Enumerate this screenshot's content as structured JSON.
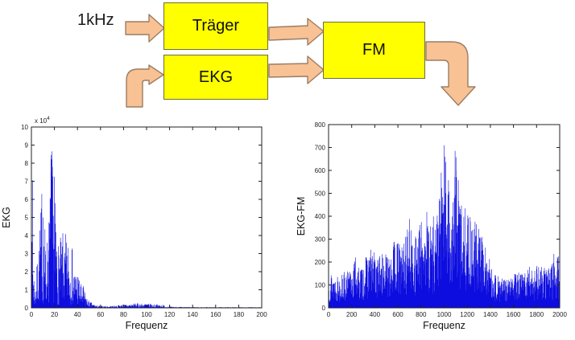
{
  "diagram": {
    "input_label": "1kHz",
    "blocks": {
      "traeger": "Träger",
      "ekg": "EKG",
      "fm": "FM"
    },
    "colors": {
      "block_fill": "#ffff00",
      "block_border": "#6e6e3a",
      "arrow_fill": "#f8c295",
      "arrow_border": "#9b7d63"
    }
  },
  "chart_data": [
    {
      "type": "line",
      "subtype": "noisy-spectrum",
      "title": "",
      "xlabel": "Frequenz",
      "ylabel": "EKG",
      "xlim": [
        0,
        200
      ],
      "xtick_step": 20,
      "ylim": [
        0,
        10
      ],
      "ytick_step": 1,
      "y_exponent_label": "x 10",
      "y_exponent_power": "4",
      "grid": false,
      "box": true,
      "line_color": "#0d0de0",
      "envelope": [
        [
          0,
          0.4
        ],
        [
          1,
          7.1
        ],
        [
          1.5,
          3.0
        ],
        [
          2,
          2.4
        ],
        [
          3,
          1.2
        ],
        [
          4,
          1.6
        ],
        [
          5,
          2.6
        ],
        [
          6,
          3.4
        ],
        [
          7,
          4.6
        ],
        [
          8,
          5.2
        ],
        [
          9,
          6.3
        ],
        [
          10,
          5.1
        ],
        [
          11,
          4.4
        ],
        [
          12,
          4.7
        ],
        [
          13,
          3.9
        ],
        [
          14,
          4.1
        ],
        [
          15,
          4.9
        ],
        [
          16,
          6.1
        ],
        [
          17,
          8.5
        ],
        [
          18,
          8.7
        ],
        [
          19,
          6.4
        ],
        [
          20,
          7.3
        ],
        [
          21,
          5.5
        ],
        [
          22,
          4.4
        ],
        [
          23,
          3.8
        ],
        [
          24,
          3.5
        ],
        [
          25,
          4.0
        ],
        [
          26,
          3.6
        ],
        [
          27,
          4.4
        ],
        [
          28,
          3.4
        ],
        [
          29,
          3.6
        ],
        [
          30,
          4.3
        ],
        [
          31,
          3.3
        ],
        [
          32,
          4.2
        ],
        [
          33,
          3.1
        ],
        [
          34,
          3.2
        ],
        [
          35,
          4.1
        ],
        [
          36,
          2.6
        ],
        [
          37,
          2.3
        ],
        [
          38,
          2.2
        ],
        [
          39,
          1.9
        ],
        [
          40,
          2.4
        ],
        [
          41,
          1.8
        ],
        [
          42,
          1.6
        ],
        [
          43,
          1.4
        ],
        [
          44,
          1.2
        ],
        [
          45,
          1.3
        ],
        [
          46,
          1.0
        ],
        [
          47,
          0.8
        ],
        [
          48,
          0.6
        ],
        [
          49,
          0.5
        ],
        [
          50,
          0.4
        ],
        [
          52,
          0.3
        ],
        [
          54,
          0.22
        ],
        [
          56,
          0.15
        ],
        [
          58,
          0.12
        ],
        [
          60,
          0.12
        ],
        [
          64,
          0.1
        ],
        [
          68,
          0.1
        ],
        [
          72,
          0.13
        ],
        [
          76,
          0.16
        ],
        [
          80,
          0.2
        ],
        [
          84,
          0.2
        ],
        [
          88,
          0.24
        ],
        [
          92,
          0.26
        ],
        [
          96,
          0.24
        ],
        [
          100,
          0.26
        ],
        [
          104,
          0.22
        ],
        [
          108,
          0.2
        ],
        [
          112,
          0.18
        ],
        [
          114,
          0.2
        ],
        [
          116,
          0.1
        ],
        [
          120,
          0.07
        ],
        [
          125,
          0.06
        ],
        [
          130,
          0.05
        ],
        [
          140,
          0.05
        ],
        [
          150,
          0.04
        ],
        [
          160,
          0.04
        ],
        [
          170,
          0.04
        ],
        [
          180,
          0.04
        ],
        [
          190,
          0.04
        ],
        [
          200,
          0.04
        ]
      ],
      "spikes": [
        [
          1,
          7.05
        ],
        [
          9,
          6.3
        ],
        [
          16.5,
          6.0
        ],
        [
          17,
          8.45
        ],
        [
          18,
          8.65
        ],
        [
          20,
          7.25
        ],
        [
          10,
          5.0
        ]
      ],
      "noise_seed": 7,
      "noise_step": 0.25,
      "noise_floor": 0.04,
      "noise_shape": 1.2
    },
    {
      "type": "line",
      "subtype": "noisy-spectrum",
      "title": "",
      "xlabel": "Frequenz",
      "ylabel": "EKG-FM",
      "xlim": [
        0,
        2000
      ],
      "xtick_step": 200,
      "ylim": [
        0,
        800
      ],
      "ytick_step": 100,
      "grid": false,
      "box": true,
      "line_color": "#0d0de0",
      "envelope": [
        [
          0,
          150
        ],
        [
          30,
          160
        ],
        [
          60,
          140
        ],
        [
          100,
          150
        ],
        [
          150,
          160
        ],
        [
          200,
          170
        ],
        [
          230,
          220
        ],
        [
          260,
          180
        ],
        [
          300,
          185
        ],
        [
          340,
          250
        ],
        [
          380,
          260
        ],
        [
          420,
          230
        ],
        [
          460,
          240
        ],
        [
          500,
          235
        ],
        [
          540,
          290
        ],
        [
          580,
          300
        ],
        [
          620,
          280
        ],
        [
          660,
          310
        ],
        [
          700,
          390
        ],
        [
          730,
          320
        ],
        [
          760,
          340
        ],
        [
          800,
          375
        ],
        [
          840,
          440
        ],
        [
          880,
          400
        ],
        [
          920,
          420
        ],
        [
          950,
          470
        ],
        [
          980,
          560
        ],
        [
          1000,
          710
        ],
        [
          1020,
          640
        ],
        [
          1040,
          560
        ],
        [
          1060,
          500
        ],
        [
          1080,
          470
        ],
        [
          1100,
          685
        ],
        [
          1120,
          580
        ],
        [
          1140,
          520
        ],
        [
          1160,
          480
        ],
        [
          1180,
          450
        ],
        [
          1200,
          440
        ],
        [
          1230,
          400
        ],
        [
          1260,
          380
        ],
        [
          1300,
          375
        ],
        [
          1340,
          300
        ],
        [
          1370,
          250
        ],
        [
          1400,
          210
        ],
        [
          1430,
          170
        ],
        [
          1460,
          140
        ],
        [
          1500,
          130
        ],
        [
          1550,
          140
        ],
        [
          1600,
          150
        ],
        [
          1650,
          155
        ],
        [
          1700,
          165
        ],
        [
          1750,
          185
        ],
        [
          1800,
          200
        ],
        [
          1850,
          175
        ],
        [
          1900,
          190
        ],
        [
          1950,
          230
        ],
        [
          2000,
          225
        ]
      ],
      "spikes": [
        [
          1000,
          710
        ],
        [
          1008,
          660
        ],
        [
          1095,
          685
        ],
        [
          1103,
          600
        ],
        [
          975,
          590
        ],
        [
          232,
          220
        ],
        [
          1950,
          235
        ]
      ],
      "noise_seed": 13,
      "noise_step": 2.5,
      "noise_floor": 0.15,
      "noise_shape": 0.9
    }
  ]
}
